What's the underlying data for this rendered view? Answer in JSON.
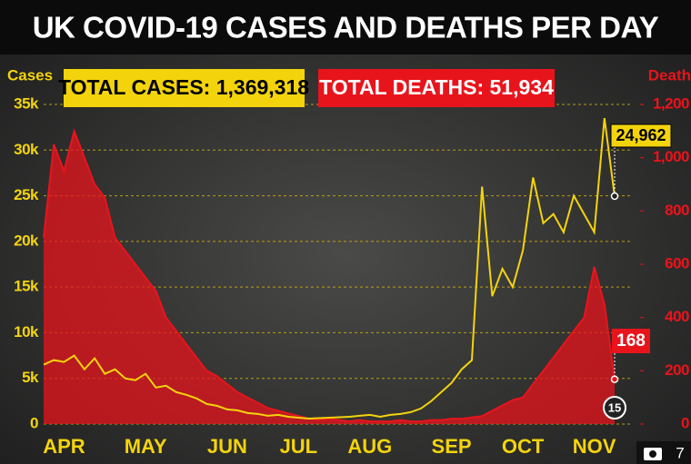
{
  "chart_data": {
    "type": "line",
    "title": "UK COVID-19 CASES AND DEATHS PER DAY",
    "y_label": "Cases",
    "y2_label": "Death",
    "annotations": [
      "TOTAL CASES: 1,369,318",
      "TOTAL DEATHS: 51,934",
      "24,962",
      "168",
      "15"
    ],
    "photo_count": "7",
    "categories": [
      null,
      null,
      "APR",
      null,
      null,
      null,
      null,
      null,
      null,
      null,
      "MAY",
      null,
      null,
      null,
      null,
      null,
      null,
      null,
      "JUN",
      null,
      null,
      null,
      null,
      null,
      null,
      "JUL",
      null,
      null,
      null,
      null,
      null,
      null,
      "AUG",
      null,
      null,
      null,
      null,
      null,
      null,
      null,
      "SEP",
      null,
      null,
      null,
      null,
      null,
      null,
      "OCT",
      null,
      null,
      null,
      null,
      null,
      null,
      "NOV",
      null,
      null
    ],
    "series": [
      {
        "name": "Cases",
        "color": "#f3d40c",
        "values": [
          6500,
          7000,
          6800,
          7500,
          6000,
          7200,
          5500,
          6000,
          5000,
          4800,
          5500,
          4000,
          4200,
          3500,
          3200,
          2800,
          2200,
          2000,
          1600,
          1500,
          1200,
          1100,
          900,
          1000,
          800,
          700,
          600,
          650,
          700,
          750,
          800,
          900,
          1000,
          800,
          1000,
          1100,
          1300,
          1700,
          2500,
          3500,
          4500,
          6000,
          7000,
          26000,
          14000,
          17000,
          15000,
          19000,
          27000,
          22000,
          23000,
          21000,
          25000,
          23000,
          21000,
          33500,
          24962
        ]
      },
      {
        "name": "Deaths",
        "color": "#e8141c",
        "axis": "y2",
        "values": [
          700,
          1050,
          950,
          1100,
          1000,
          900,
          850,
          700,
          650,
          600,
          550,
          500,
          400,
          350,
          300,
          250,
          200,
          180,
          150,
          120,
          100,
          80,
          60,
          50,
          40,
          30,
          20,
          15,
          20,
          15,
          10,
          15,
          10,
          10,
          10,
          15,
          10,
          10,
          15,
          15,
          20,
          20,
          25,
          30,
          50,
          70,
          90,
          100,
          150,
          200,
          250,
          300,
          350,
          400,
          590,
          450,
          168
        ]
      }
    ],
    "ylim": [
      0,
      35000
    ],
    "yticks": [
      0,
      {
        "value": 5000,
        "label": "5k"
      },
      {
        "value": 10000,
        "label": "10k"
      },
      {
        "value": 15000,
        "label": "15k"
      },
      {
        "value": 20000,
        "label": "20k"
      },
      {
        "value": 25000,
        "label": "25k"
      },
      {
        "value": 30000,
        "label": "30k"
      },
      {
        "value": 35000,
        "label": "35k"
      }
    ],
    "y2lim": [
      0,
      1200
    ],
    "y2ticks": [
      0,
      200,
      400,
      600,
      800,
      {
        "value": 1000,
        "label": "1,000"
      },
      {
        "value": 1200,
        "label": "1,200"
      }
    ],
    "grid": true
  }
}
